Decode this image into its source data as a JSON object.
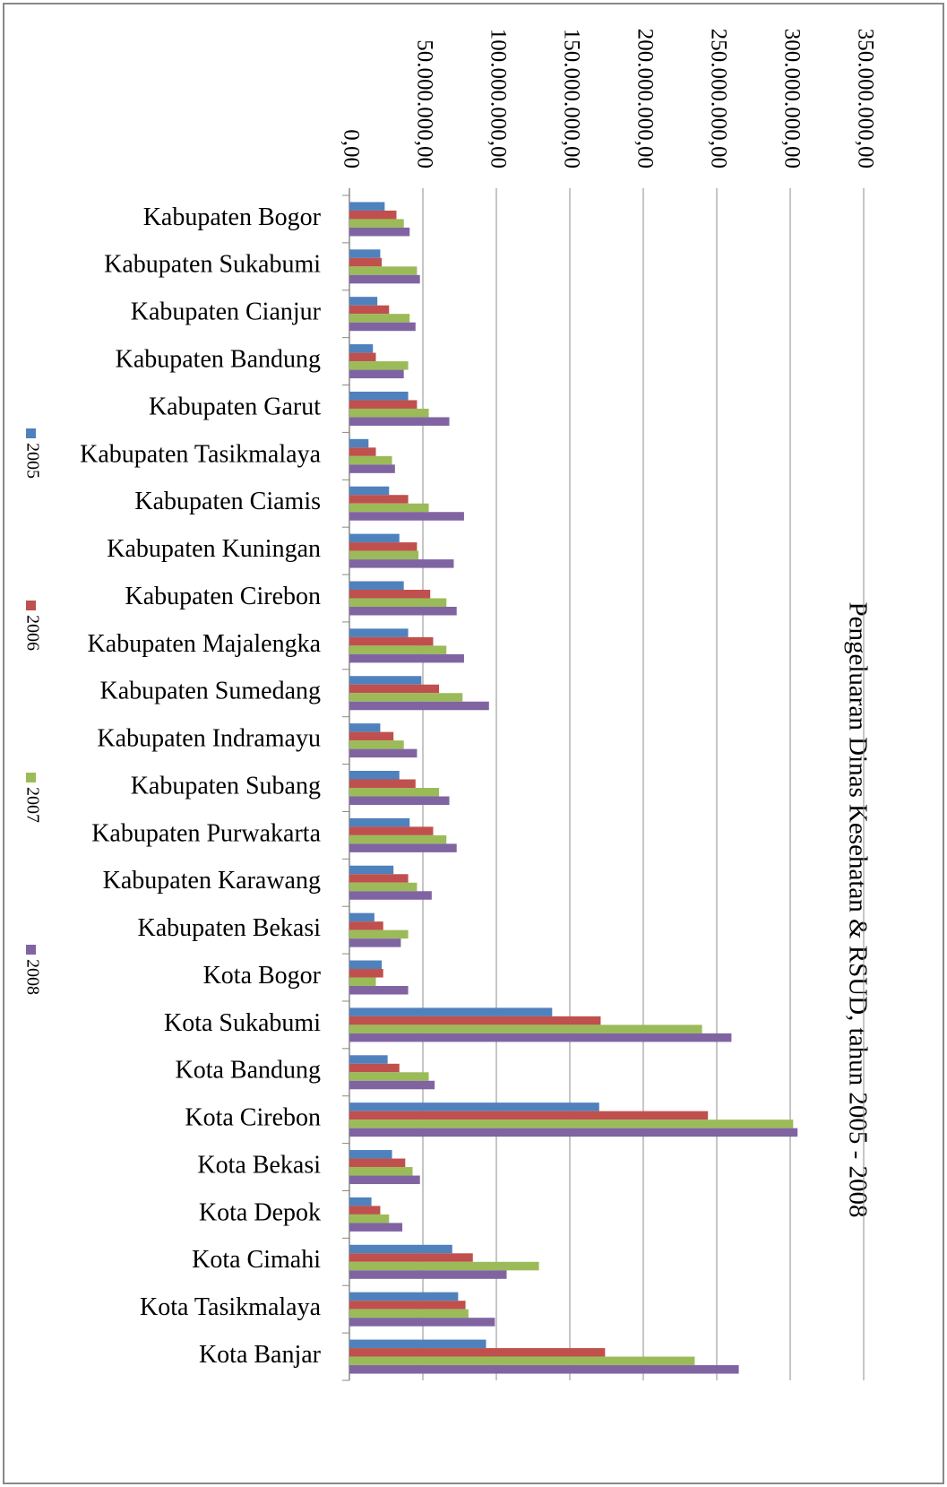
{
  "chart_data": {
    "type": "bar",
    "orientation": "horizontal",
    "title": "Pengeluaran Dinas Kesehatan & RSUD, tahun 2005 - 2008",
    "categories": [
      "Kabupaten Bogor",
      "Kabupaten Sukabumi",
      "Kabupaten Cianjur",
      "Kabupaten Bandung",
      "Kabupaten Garut",
      "Kabupaten Tasikmalaya",
      "Kabupaten Ciamis",
      "Kabupaten Kuningan",
      "Kabupaten Cirebon",
      "Kabupaten Majalengka",
      "Kabupaten Sumedang",
      "Kabupaten Indramayu",
      "Kabupaten Subang",
      "Kabupaten Purwakarta",
      "Kabupaten Karawang",
      "Kabupaten Bekasi",
      "Kota Bogor",
      "Kota Sukabumi",
      "Kota Bandung",
      "Kota Cirebon",
      "Kota Bekasi",
      "Kota Depok",
      "Kota Cimahi",
      "Kota Tasikmalaya",
      "Kota Banjar"
    ],
    "series": [
      {
        "name": "2005",
        "color": "#4f81bd",
        "values": [
          24000000,
          21000000,
          19000000,
          16000000,
          40000000,
          13000000,
          27000000,
          34000000,
          37000000,
          40000000,
          49000000,
          21000000,
          34000000,
          41000000,
          30000000,
          17000000,
          22000000,
          138000000,
          26000000,
          170000000,
          29000000,
          15000000,
          70000000,
          74000000,
          93000000
        ]
      },
      {
        "name": "2006",
        "color": "#c0504d",
        "values": [
          32000000,
          22000000,
          27000000,
          18000000,
          46000000,
          18000000,
          40000000,
          46000000,
          55000000,
          57000000,
          61000000,
          30000000,
          45000000,
          57000000,
          40000000,
          23000000,
          23000000,
          171000000,
          34000000,
          244000000,
          38000000,
          21000000,
          84000000,
          79000000,
          174000000
        ]
      },
      {
        "name": "2007",
        "color": "#9bbb59",
        "values": [
          37000000,
          46000000,
          41000000,
          40000000,
          54000000,
          29000000,
          54000000,
          47000000,
          66000000,
          66000000,
          77000000,
          37000000,
          61000000,
          66000000,
          46000000,
          40000000,
          18000000,
          240000000,
          54000000,
          302000000,
          43000000,
          27000000,
          129000000,
          81000000,
          235000000
        ]
      },
      {
        "name": "2008",
        "color": "#8064a2",
        "values": [
          41000000,
          48000000,
          45000000,
          37000000,
          68000000,
          31000000,
          78000000,
          71000000,
          73000000,
          78000000,
          95000000,
          46000000,
          68000000,
          73000000,
          56000000,
          35000000,
          40000000,
          260000000,
          58000000,
          305000000,
          48000000,
          36000000,
          107000000,
          99000000,
          265000000
        ]
      }
    ],
    "ylim": [
      0,
      350000000
    ],
    "yticks": [
      {
        "value": 0,
        "label": "0,00"
      },
      {
        "value": 50000000,
        "label": "50.000.000,00"
      },
      {
        "value": 100000000,
        "label": "100.000.000,00"
      },
      {
        "value": 150000000,
        "label": "150.000.000,00"
      },
      {
        "value": 200000000,
        "label": "200.000.000,00"
      },
      {
        "value": 250000000,
        "label": "250.000.000,00"
      },
      {
        "value": 300000000,
        "label": "300.000.000,00"
      },
      {
        "value": 350000000,
        "label": "350.000.000,00"
      }
    ],
    "grid": true,
    "legend": "left"
  }
}
